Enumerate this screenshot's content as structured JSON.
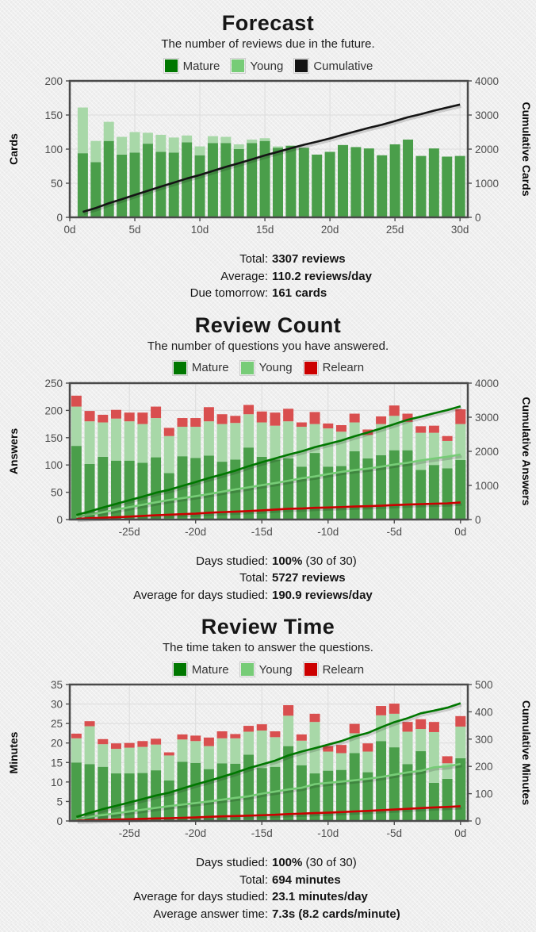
{
  "charend_note": "Anki-style statistics page",
  "charts": [
    {
      "title": "Forecast",
      "subtitle": "The number of reviews due in the future.",
      "legend": [
        {
          "label": "Mature",
          "color": "#007700"
        },
        {
          "label": "Young",
          "color": "#77cc77"
        },
        {
          "label": "Cumulative",
          "color": "#141414"
        }
      ],
      "y_label": "Cards",
      "y2_label": "Cumulative Cards",
      "stats": [
        {
          "label": "Total:",
          "bold": "3307 reviews",
          "rest": ""
        },
        {
          "label": "Average:",
          "bold": "110.2 reviews/day",
          "rest": ""
        },
        {
          "label": "Due tomorrow:",
          "bold": "161 cards",
          "rest": ""
        }
      ],
      "chart_data": {
        "type": "stacked-bar+cumulative-line",
        "title": "Forecast",
        "x_unit": "days ahead",
        "x": [
          1,
          2,
          3,
          4,
          5,
          6,
          7,
          8,
          9,
          10,
          11,
          12,
          13,
          14,
          15,
          16,
          17,
          18,
          19,
          20,
          21,
          22,
          23,
          24,
          25,
          26,
          27,
          28,
          29,
          30
        ],
        "series": [
          {
            "name": "Mature",
            "color": "#4a9e4a",
            "values": [
              94,
              81,
              112,
              92,
              95,
              108,
              96,
              95,
              110,
              91,
              109,
              109,
              100,
              109,
              112,
              102,
              105,
              102,
              92,
              96,
              106,
              103,
              101,
              91,
              107,
              114,
              90,
              101,
              89,
              90
            ]
          },
          {
            "name": "Young",
            "color": "#a8d8a8",
            "values": [
              67,
              31,
              28,
              26,
              30,
              16,
              25,
              22,
              10,
              13,
              10,
              9,
              7,
              5,
              4,
              2,
              0,
              0,
              0,
              0,
              0,
              0,
              0,
              0,
              0,
              0,
              0,
              0,
              0,
              0
            ]
          }
        ],
        "cumulative": [
          {
            "name": "Cumulative",
            "color": "#141414",
            "source": "total"
          }
        ],
        "xlim": [
          0,
          30.6
        ],
        "xticks": [
          {
            "v": 0,
            "label": "0d"
          },
          {
            "v": 5,
            "label": "5d"
          },
          {
            "v": 10,
            "label": "10d"
          },
          {
            "v": 15,
            "label": "15d"
          },
          {
            "v": 20,
            "label": "20d"
          },
          {
            "v": 25,
            "label": "25d"
          },
          {
            "v": 30,
            "label": "30d"
          }
        ],
        "ylim": [
          0,
          200
        ],
        "yticks": [
          0,
          50,
          100,
          150,
          200
        ],
        "y2lim": [
          0,
          4000
        ],
        "y2ticks": [
          0,
          1000,
          2000,
          3000,
          4000
        ],
        "grid": true,
        "grid_color": "#dcdcdc",
        "border_color": "#4a4a4a",
        "legend_position": "top"
      }
    },
    {
      "title": "Review Count",
      "subtitle": "The number of questions you have answered.",
      "legend": [
        {
          "label": "Mature",
          "color": "#007700"
        },
        {
          "label": "Young",
          "color": "#77cc77"
        },
        {
          "label": "Relearn",
          "color": "#cc0000"
        }
      ],
      "y_label": "Answers",
      "y2_label": "Cumulative Answers",
      "stats": [
        {
          "label": "Days studied:",
          "bold": "100%",
          "rest": " (30 of 30)"
        },
        {
          "label": "Total:",
          "bold": "5727 reviews",
          "rest": ""
        },
        {
          "label": "Average for days studied:",
          "bold": "190.9 reviews/day",
          "rest": ""
        }
      ],
      "chart_data": {
        "type": "stacked-bar+cumulative-line",
        "title": "Review Count",
        "x_unit": "days ago",
        "x": [
          -29,
          -28,
          -27,
          -26,
          -25,
          -24,
          -23,
          -22,
          -21,
          -20,
          -19,
          -18,
          -17,
          -16,
          -15,
          -14,
          -13,
          -12,
          -11,
          -10,
          -9,
          -8,
          -7,
          -6,
          -5,
          -4,
          -3,
          -2,
          -1,
          0
        ],
        "series": [
          {
            "name": "Mature",
            "color": "#4a9e4a",
            "values": [
              135,
              102,
              115,
              108,
              108,
              104,
              114,
              85,
              116,
              113,
              117,
              106,
              110,
              132,
              115,
              110,
              112,
              97,
              122,
              97,
              98,
              125,
              112,
              118,
              127,
              127,
              91,
              100,
              94,
              109
            ]
          },
          {
            "name": "Young",
            "color": "#a8d8a8",
            "values": [
              72,
              78,
              63,
              77,
              72,
              71,
              72,
              68,
              54,
              57,
              63,
              69,
              67,
              61,
              63,
              62,
              68,
              73,
              53,
              70,
              63,
              53,
              43,
              57,
              63,
              52,
              68,
              59,
              50,
              66
            ]
          },
          {
            "name": "Relearn",
            "color": "#d94f4f",
            "values": [
              20,
              19,
              14,
              16,
              16,
              21,
              21,
              15,
              16,
              16,
              26,
              18,
              13,
              17,
              20,
              24,
              23,
              8,
              22,
              9,
              12,
              16,
              10,
              14,
              19,
              15,
              12,
              13,
              9,
              27
            ]
          }
        ],
        "cumulative": [
          {
            "name": "Young",
            "color": "#77cc77",
            "source": 1
          },
          {
            "name": "Relearn",
            "color": "#cc0000",
            "source": 2
          },
          {
            "name": "Mature",
            "color": "#007700",
            "source": 0
          }
        ],
        "xlim": [
          -29.5,
          0.55
        ],
        "xticks": [
          {
            "v": -25,
            "label": "-25d"
          },
          {
            "v": -20,
            "label": "-20d"
          },
          {
            "v": -15,
            "label": "-15d"
          },
          {
            "v": -10,
            "label": "-10d"
          },
          {
            "v": -5,
            "label": "-5d"
          },
          {
            "v": 0,
            "label": "0d"
          }
        ],
        "ylim": [
          0,
          250
        ],
        "yticks": [
          0,
          50,
          100,
          150,
          200,
          250
        ],
        "y2lim": [
          0,
          4000
        ],
        "y2ticks": [
          0,
          1000,
          2000,
          3000,
          4000
        ],
        "grid": true,
        "grid_color": "#dcdcdc",
        "border_color": "#4a4a4a",
        "legend_position": "top"
      }
    },
    {
      "title": "Review Time",
      "subtitle": "The time taken to answer the questions.",
      "legend": [
        {
          "label": "Mature",
          "color": "#007700"
        },
        {
          "label": "Young",
          "color": "#77cc77"
        },
        {
          "label": "Relearn",
          "color": "#cc0000"
        }
      ],
      "y_label": "Minutes",
      "y2_label": "Cumulative Minutes",
      "stats": [
        {
          "label": "Days studied:",
          "bold": "100%",
          "rest": " (30 of 30)"
        },
        {
          "label": "Total:",
          "bold": "694 minutes",
          "rest": ""
        },
        {
          "label": "Average for days studied:",
          "bold": "23.1 minutes/day",
          "rest": ""
        },
        {
          "label": "Average answer time:",
          "bold": "7.3s (8.2 cards/minute)",
          "rest": ""
        }
      ],
      "chart_data": {
        "type": "stacked-bar+cumulative-line",
        "title": "Review Time",
        "x_unit": "days ago",
        "x": [
          -29,
          -28,
          -27,
          -26,
          -25,
          -24,
          -23,
          -22,
          -21,
          -20,
          -19,
          -18,
          -17,
          -16,
          -15,
          -14,
          -13,
          -12,
          -11,
          -10,
          -9,
          -8,
          -7,
          -6,
          -5,
          -4,
          -3,
          -2,
          -1,
          0
        ],
        "series": [
          {
            "name": "Mature",
            "color": "#4a9e4a",
            "values": [
              15.0,
              14.6,
              13.9,
              12.2,
              12.2,
              12.3,
              13.0,
              10.4,
              15.2,
              14.9,
              13.3,
              14.8,
              14.7,
              17.0,
              13.6,
              13.9,
              19.2,
              14.3,
              12.2,
              12.9,
              13.1,
              17.4,
              12.5,
              20.5,
              18.9,
              14.6,
              17.9,
              9.8,
              10.8,
              16.1
            ]
          },
          {
            "name": "Young",
            "color": "#a8d8a8",
            "values": [
              6.2,
              9.7,
              5.8,
              6.3,
              6.6,
              6.7,
              6.6,
              6.4,
              5.7,
              5.6,
              5.9,
              6.4,
              6.5,
              5.9,
              9.6,
              7.6,
              7.8,
              6.3,
              13.2,
              4.9,
              4.3,
              5.1,
              5.3,
              6.6,
              8.6,
              8.3,
              5.7,
              13.0,
              4.0,
              8.1
            ]
          },
          {
            "name": "Relearn",
            "color": "#d94f4f",
            "values": [
              1.2,
              1.3,
              1.3,
              1.4,
              1.2,
              1.5,
              1.5,
              0.8,
              1.3,
              1.4,
              2.2,
              1.8,
              1.1,
              1.5,
              1.6,
              1.5,
              2.7,
              1.6,
              2.1,
              1.4,
              2.1,
              2.4,
              2.1,
              2.4,
              2.6,
              2.5,
              2.5,
              2.6,
              1.8,
              2.7
            ]
          }
        ],
        "cumulative": [
          {
            "name": "Young",
            "color": "#77cc77",
            "source": 1
          },
          {
            "name": "Relearn",
            "color": "#cc0000",
            "source": 2
          },
          {
            "name": "Mature",
            "color": "#007700",
            "source": 0
          }
        ],
        "xlim": [
          -29.5,
          0.55
        ],
        "xticks": [
          {
            "v": -25,
            "label": "-25d"
          },
          {
            "v": -20,
            "label": "-20d"
          },
          {
            "v": -15,
            "label": "-15d"
          },
          {
            "v": -10,
            "label": "-10d"
          },
          {
            "v": -5,
            "label": "-5d"
          },
          {
            "v": 0,
            "label": "0d"
          }
        ],
        "ylim": [
          0,
          35
        ],
        "yticks": [
          0,
          5,
          10,
          15,
          20,
          25,
          30,
          35
        ],
        "y2lim": [
          0,
          500
        ],
        "y2ticks": [
          0,
          100,
          200,
          300,
          400,
          500
        ],
        "grid": true,
        "grid_color": "#dcdcdc",
        "border_color": "#4a4a4a",
        "legend_position": "top"
      }
    }
  ]
}
